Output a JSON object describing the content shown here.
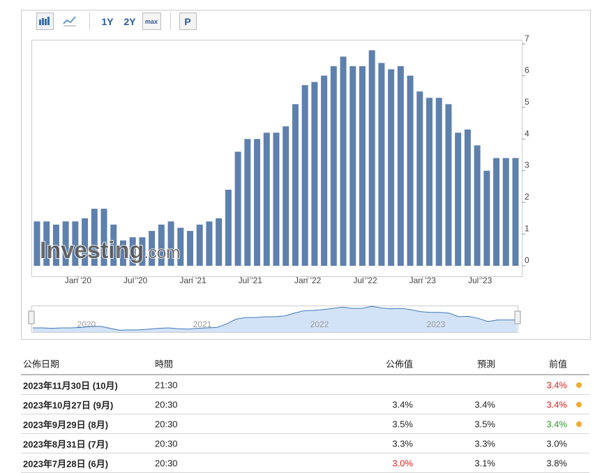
{
  "toolbar": {
    "buttons": [
      "1Y",
      "2Y",
      "max",
      "P"
    ]
  },
  "chart_data": {
    "type": "bar",
    "categories": [
      null,
      null,
      null,
      null,
      "Jan '20",
      null,
      null,
      null,
      null,
      null,
      "Jul '20",
      null,
      null,
      null,
      null,
      null,
      "Jan '21",
      null,
      null,
      null,
      null,
      null,
      "Jul '21",
      null,
      null,
      null,
      null,
      null,
      "Jan '22",
      null,
      null,
      null,
      null,
      null,
      "Jul '22",
      null,
      null,
      null,
      null,
      null,
      "Jan '23",
      null,
      null,
      null,
      null,
      null,
      "Jul '23",
      null,
      null,
      null,
      null
    ],
    "values": [
      1.4,
      1.4,
      1.3,
      1.4,
      1.4,
      1.5,
      1.8,
      1.8,
      1.3,
      0.8,
      0.9,
      0.9,
      1.1,
      1.3,
      1.4,
      1.2,
      1.1,
      1.3,
      1.4,
      1.5,
      2.4,
      3.6,
      4.0,
      4.0,
      4.2,
      4.2,
      4.4,
      5.1,
      5.7,
      5.8,
      6.0,
      6.3,
      6.6,
      6.3,
      6.3,
      6.8,
      6.4,
      6.2,
      6.3,
      6.0,
      5.5,
      5.3,
      5.3,
      5.1,
      4.2,
      4.3,
      3.8,
      3.0,
      3.4,
      3.4,
      3.4
    ],
    "color": "#5e80ad",
    "ylim": [
      0,
      7
    ],
    "yticks": [
      0,
      1,
      2,
      3,
      4,
      5,
      6,
      7
    ],
    "watermark": [
      "Investing",
      ".com"
    ],
    "navigator": {
      "labels": [
        "2020",
        "2021",
        "2022",
        "2023"
      ],
      "line_color": "#3f78b8",
      "fill_color": "#d3e3f7"
    }
  },
  "table": {
    "header": [
      "公佈日期",
      "時間",
      "公佈值",
      "預測",
      "前值"
    ],
    "rows": [
      {
        "cells": [
          "2023年11月30日 (10月)",
          "21:30",
          null,
          null,
          {
            "text": "3.4%",
            "color": "#e0201b"
          }
        ],
        "dot": "#f0ad30"
      },
      {
        "cells": [
          "2023年10月27日 (9月)",
          "20:30",
          "3.4%",
          "3.4%",
          {
            "text": "3.4%",
            "color": "#e0201b"
          }
        ],
        "dot": "#f0ad30"
      },
      {
        "cells": [
          "2023年9月29日 (8月)",
          "20:30",
          "3.5%",
          "3.5%",
          {
            "text": "3.4%",
            "color": "#2a9a2a"
          }
        ],
        "dot": "#f0ad30"
      },
      {
        "cells": [
          "2023年8月31日 (7月)",
          "20:30",
          "3.3%",
          "3.3%",
          "3.0%"
        ]
      },
      {
        "cells": [
          "2023年7月28日 (6月)",
          "20:30",
          {
            "text": "3.0%",
            "color": "#e0201b"
          },
          "3.1%",
          "3.8%"
        ]
      }
    ]
  }
}
